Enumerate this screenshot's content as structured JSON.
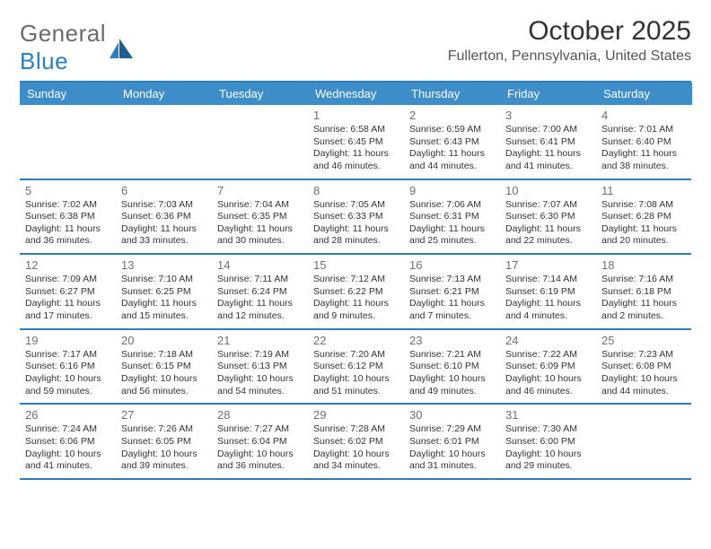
{
  "logo": {
    "word1": "General",
    "word2": "Blue"
  },
  "title": "October 2025",
  "location": "Fullerton, Pennsylvania, United States",
  "colors": {
    "header_bg": "#3d8dc9",
    "border": "#2f7db9",
    "text": "#333333",
    "muted": "#707070",
    "logo_gray": "#6b6b6b",
    "logo_blue": "#2a7fbf",
    "background": "#ffffff"
  },
  "typography": {
    "title_fontsize": 30,
    "location_fontsize": 16,
    "day_header_fontsize": 13,
    "daynum_fontsize": 13,
    "info_fontsize": 10.5
  },
  "day_headers": [
    "Sunday",
    "Monday",
    "Tuesday",
    "Wednesday",
    "Thursday",
    "Friday",
    "Saturday"
  ],
  "weeks": [
    [
      {
        "n": "",
        "sr": "",
        "ss": "",
        "dl": ""
      },
      {
        "n": "",
        "sr": "",
        "ss": "",
        "dl": ""
      },
      {
        "n": "",
        "sr": "",
        "ss": "",
        "dl": ""
      },
      {
        "n": "1",
        "sr": "Sunrise: 6:58 AM",
        "ss": "Sunset: 6:45 PM",
        "dl": "Daylight: 11 hours and 46 minutes."
      },
      {
        "n": "2",
        "sr": "Sunrise: 6:59 AM",
        "ss": "Sunset: 6:43 PM",
        "dl": "Daylight: 11 hours and 44 minutes."
      },
      {
        "n": "3",
        "sr": "Sunrise: 7:00 AM",
        "ss": "Sunset: 6:41 PM",
        "dl": "Daylight: 11 hours and 41 minutes."
      },
      {
        "n": "4",
        "sr": "Sunrise: 7:01 AM",
        "ss": "Sunset: 6:40 PM",
        "dl": "Daylight: 11 hours and 38 minutes."
      }
    ],
    [
      {
        "n": "5",
        "sr": "Sunrise: 7:02 AM",
        "ss": "Sunset: 6:38 PM",
        "dl": "Daylight: 11 hours and 36 minutes."
      },
      {
        "n": "6",
        "sr": "Sunrise: 7:03 AM",
        "ss": "Sunset: 6:36 PM",
        "dl": "Daylight: 11 hours and 33 minutes."
      },
      {
        "n": "7",
        "sr": "Sunrise: 7:04 AM",
        "ss": "Sunset: 6:35 PM",
        "dl": "Daylight: 11 hours and 30 minutes."
      },
      {
        "n": "8",
        "sr": "Sunrise: 7:05 AM",
        "ss": "Sunset: 6:33 PM",
        "dl": "Daylight: 11 hours and 28 minutes."
      },
      {
        "n": "9",
        "sr": "Sunrise: 7:06 AM",
        "ss": "Sunset: 6:31 PM",
        "dl": "Daylight: 11 hours and 25 minutes."
      },
      {
        "n": "10",
        "sr": "Sunrise: 7:07 AM",
        "ss": "Sunset: 6:30 PM",
        "dl": "Daylight: 11 hours and 22 minutes."
      },
      {
        "n": "11",
        "sr": "Sunrise: 7:08 AM",
        "ss": "Sunset: 6:28 PM",
        "dl": "Daylight: 11 hours and 20 minutes."
      }
    ],
    [
      {
        "n": "12",
        "sr": "Sunrise: 7:09 AM",
        "ss": "Sunset: 6:27 PM",
        "dl": "Daylight: 11 hours and 17 minutes."
      },
      {
        "n": "13",
        "sr": "Sunrise: 7:10 AM",
        "ss": "Sunset: 6:25 PM",
        "dl": "Daylight: 11 hours and 15 minutes."
      },
      {
        "n": "14",
        "sr": "Sunrise: 7:11 AM",
        "ss": "Sunset: 6:24 PM",
        "dl": "Daylight: 11 hours and 12 minutes."
      },
      {
        "n": "15",
        "sr": "Sunrise: 7:12 AM",
        "ss": "Sunset: 6:22 PM",
        "dl": "Daylight: 11 hours and 9 minutes."
      },
      {
        "n": "16",
        "sr": "Sunrise: 7:13 AM",
        "ss": "Sunset: 6:21 PM",
        "dl": "Daylight: 11 hours and 7 minutes."
      },
      {
        "n": "17",
        "sr": "Sunrise: 7:14 AM",
        "ss": "Sunset: 6:19 PM",
        "dl": "Daylight: 11 hours and 4 minutes."
      },
      {
        "n": "18",
        "sr": "Sunrise: 7:16 AM",
        "ss": "Sunset: 6:18 PM",
        "dl": "Daylight: 11 hours and 2 minutes."
      }
    ],
    [
      {
        "n": "19",
        "sr": "Sunrise: 7:17 AM",
        "ss": "Sunset: 6:16 PM",
        "dl": "Daylight: 10 hours and 59 minutes."
      },
      {
        "n": "20",
        "sr": "Sunrise: 7:18 AM",
        "ss": "Sunset: 6:15 PM",
        "dl": "Daylight: 10 hours and 56 minutes."
      },
      {
        "n": "21",
        "sr": "Sunrise: 7:19 AM",
        "ss": "Sunset: 6:13 PM",
        "dl": "Daylight: 10 hours and 54 minutes."
      },
      {
        "n": "22",
        "sr": "Sunrise: 7:20 AM",
        "ss": "Sunset: 6:12 PM",
        "dl": "Daylight: 10 hours and 51 minutes."
      },
      {
        "n": "23",
        "sr": "Sunrise: 7:21 AM",
        "ss": "Sunset: 6:10 PM",
        "dl": "Daylight: 10 hours and 49 minutes."
      },
      {
        "n": "24",
        "sr": "Sunrise: 7:22 AM",
        "ss": "Sunset: 6:09 PM",
        "dl": "Daylight: 10 hours and 46 minutes."
      },
      {
        "n": "25",
        "sr": "Sunrise: 7:23 AM",
        "ss": "Sunset: 6:08 PM",
        "dl": "Daylight: 10 hours and 44 minutes."
      }
    ],
    [
      {
        "n": "26",
        "sr": "Sunrise: 7:24 AM",
        "ss": "Sunset: 6:06 PM",
        "dl": "Daylight: 10 hours and 41 minutes."
      },
      {
        "n": "27",
        "sr": "Sunrise: 7:26 AM",
        "ss": "Sunset: 6:05 PM",
        "dl": "Daylight: 10 hours and 39 minutes."
      },
      {
        "n": "28",
        "sr": "Sunrise: 7:27 AM",
        "ss": "Sunset: 6:04 PM",
        "dl": "Daylight: 10 hours and 36 minutes."
      },
      {
        "n": "29",
        "sr": "Sunrise: 7:28 AM",
        "ss": "Sunset: 6:02 PM",
        "dl": "Daylight: 10 hours and 34 minutes."
      },
      {
        "n": "30",
        "sr": "Sunrise: 7:29 AM",
        "ss": "Sunset: 6:01 PM",
        "dl": "Daylight: 10 hours and 31 minutes."
      },
      {
        "n": "31",
        "sr": "Sunrise: 7:30 AM",
        "ss": "Sunset: 6:00 PM",
        "dl": "Daylight: 10 hours and 29 minutes."
      },
      {
        "n": "",
        "sr": "",
        "ss": "",
        "dl": ""
      }
    ]
  ]
}
